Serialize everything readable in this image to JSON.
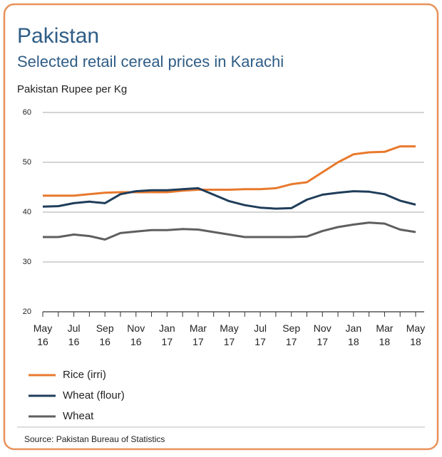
{
  "chart_data": {
    "type": "line",
    "title": "Pakistan",
    "subtitle": "Selected retail cereal prices in Karachi",
    "y_label": "Pakistan Rupee per Kg",
    "source": "Source: Pakistan Bureau of Statistics",
    "categories": [
      "May 16",
      null,
      "Jul 16",
      null,
      "Sep 16",
      null,
      "Nov 16",
      null,
      "Jan 17",
      null,
      "Mar 17",
      null,
      "May 17",
      null,
      "Jul 17",
      null,
      "Sep 17",
      null,
      "Nov 17",
      null,
      "Jan 18",
      null,
      "Mar 18",
      null,
      "May 18"
    ],
    "series": [
      {
        "name": "Rice (irri)",
        "color": "#e8792d",
        "values": [
          43.3,
          43.3,
          43.3,
          43.6,
          43.9,
          44,
          44,
          44,
          44,
          44.3,
          44.5,
          44.5,
          44.5,
          44.6,
          44.6,
          44.8,
          45.6,
          46,
          48,
          50,
          51.6,
          52,
          52.1,
          53.2,
          53.2
        ]
      },
      {
        "name": "Wheat (flour)",
        "color": "#1f3d5a",
        "values": [
          41.1,
          41.2,
          41.8,
          42.1,
          41.8,
          43.6,
          44.2,
          44.4,
          44.4,
          44.6,
          44.8,
          43.5,
          42.2,
          41.4,
          40.9,
          40.7,
          40.8,
          42.5,
          43.5,
          43.9,
          44.2,
          44.1,
          43.6,
          42.3,
          41.5
        ]
      },
      {
        "name": "Wheat",
        "color": "#5f5f5f",
        "values": [
          35,
          35,
          35.5,
          35.2,
          34.5,
          35.8,
          36.1,
          36.4,
          36.4,
          36.6,
          36.5,
          36,
          35.5,
          35,
          35,
          35,
          35,
          35.1,
          36.2,
          37,
          37.5,
          37.9,
          37.7,
          36.5,
          36
        ]
      }
    ],
    "ylim": [
      20,
      60
    ],
    "yticks": [
      20,
      30,
      40,
      50,
      60
    ],
    "grid": true
  }
}
